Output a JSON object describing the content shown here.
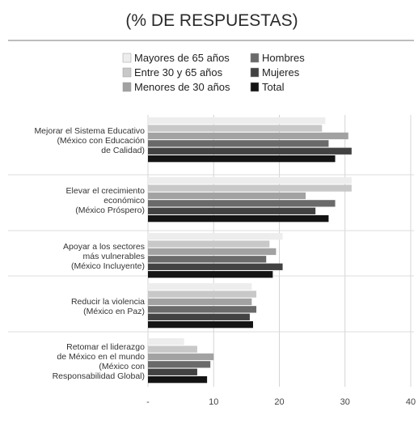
{
  "chart_data": {
    "type": "bar",
    "orientation": "horizontal",
    "title": "(% DE RESPUESTAS)",
    "xlim": [
      0,
      40
    ],
    "ticks": [
      {
        "value": 0,
        "label": "-"
      },
      {
        "value": 10,
        "label": "10"
      },
      {
        "value": 20,
        "label": "20"
      },
      {
        "value": 30,
        "label": "30"
      },
      {
        "value": 40,
        "label": "40"
      }
    ],
    "grid": true,
    "legend_position": "top",
    "categories": [
      {
        "lines": [
          "Mejorar el Sistema Educativo",
          "(México con Educación",
          "de Calidad)"
        ]
      },
      {
        "lines": [
          "Elevar el crecimiento",
          "económico",
          "(México Próspero)"
        ]
      },
      {
        "lines": [
          "Apoyar a los sectores",
          "más vulnerables",
          "(México Incluyente)"
        ]
      },
      {
        "lines": [
          "Reducir la violencia",
          "(México en Paz)"
        ]
      },
      {
        "lines": [
          "Retomar el liderazgo",
          "de México en el mundo",
          "(México con",
          "Responsabilidad Global)"
        ]
      }
    ],
    "series": [
      {
        "name": "Mayores de 65 años",
        "color": "#ededed",
        "values": [
          27,
          31,
          20.5,
          15.8,
          5.5
        ]
      },
      {
        "name": "Entre 30 y 65 años",
        "color": "#c8c8c8",
        "values": [
          26.5,
          31,
          18.5,
          16.5,
          7.5
        ]
      },
      {
        "name": "Menores de 30 años",
        "color": "#a2a2a2",
        "values": [
          30.5,
          24,
          19.5,
          15.8,
          10
        ]
      },
      {
        "name": "Hombres",
        "color": "#6a6a6a",
        "values": [
          27.5,
          28.5,
          18,
          16.5,
          9.5
        ]
      },
      {
        "name": "Mujeres",
        "color": "#424242",
        "values": [
          31,
          25.5,
          20.5,
          15.5,
          7.5
        ]
      },
      {
        "name": "Total",
        "color": "#141414",
        "values": [
          28.5,
          27.5,
          19,
          16,
          9
        ]
      }
    ],
    "legend_order": [
      0,
      3,
      1,
      4,
      2,
      5
    ]
  }
}
